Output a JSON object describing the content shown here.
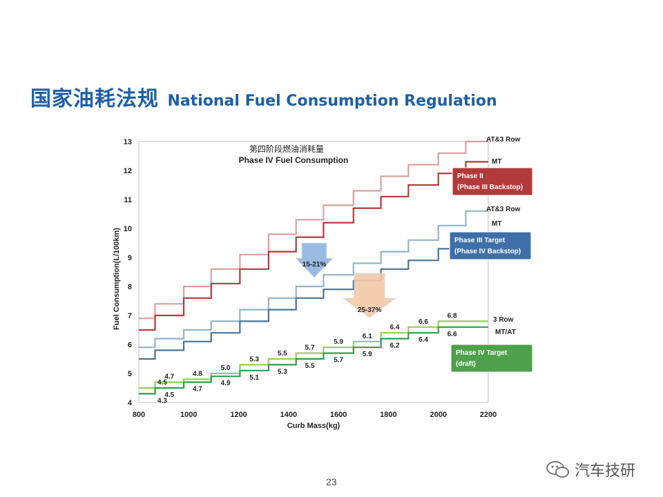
{
  "title": {
    "cn": "国家油耗法规",
    "en": "National Fuel Consumption Regulation"
  },
  "page_number": "23",
  "watermark": "汽车技研",
  "chart_data": {
    "type": "line",
    "title_cn": "第四阶段燃油消耗量",
    "title": "Phase IV Fuel Consumption",
    "xlabel": "Curb Mass(kg)",
    "ylabel": "Fuel Consumption(L/100km)",
    "xlim": [
      800,
      2200
    ],
    "ylim": [
      4,
      13
    ],
    "x_ticks": [
      "800",
      "1000",
      "1200",
      "1400",
      "1600",
      "1800",
      "2000",
      "2200"
    ],
    "y_ticks": [
      "4",
      "5",
      "6",
      "7",
      "8",
      "9",
      "10",
      "11",
      "12",
      "13"
    ],
    "step_boundaries": [
      865,
      980,
      1090,
      1205,
      1320,
      1430,
      1540,
      1660,
      1770,
      1880,
      2000,
      2110
    ],
    "series": [
      {
        "name": "AT&3 Row",
        "group": "Phase II",
        "color": "#d9a0a0",
        "values": [
          6.9,
          7.4,
          8.0,
          8.6,
          9.1,
          9.8,
          10.3,
          10.8,
          11.3,
          11.8,
          12.2,
          12.6,
          13.0
        ]
      },
      {
        "name": "MT",
        "group": "Phase II",
        "color": "#b23a3a",
        "values": [
          6.5,
          7.0,
          7.6,
          8.1,
          8.6,
          9.2,
          9.7,
          10.2,
          10.7,
          11.1,
          11.5,
          11.9,
          12.3
        ]
      },
      {
        "name": "AT&3 Row",
        "group": "Phase III",
        "color": "#8fb4cc",
        "values": [
          5.9,
          6.2,
          6.5,
          6.8,
          7.2,
          7.6,
          8.0,
          8.4,
          8.8,
          9.2,
          9.6,
          10.1,
          10.6
        ]
      },
      {
        "name": "MT",
        "group": "Phase III",
        "color": "#4a7396",
        "values": [
          5.5,
          5.8,
          6.1,
          6.4,
          6.8,
          7.2,
          7.6,
          7.9,
          8.2,
          8.6,
          8.9,
          9.3,
          9.7
        ]
      },
      {
        "name": "3 Row",
        "group": "Phase IV",
        "color": "#92d050",
        "values": [
          4.5,
          4.7,
          4.8,
          5.0,
          5.3,
          5.5,
          5.7,
          5.9,
          6.1,
          6.4,
          6.6,
          6.8,
          6.8
        ]
      },
      {
        "name": "MT/AT",
        "group": "Phase IV",
        "color": "#2e9e4a",
        "values": [
          4.3,
          4.5,
          4.7,
          4.9,
          5.1,
          5.3,
          5.5,
          5.7,
          5.9,
          6.2,
          6.4,
          6.6,
          6.6
        ]
      }
    ],
    "data_labels": {
      "upper": [
        "4.5",
        "4.7",
        "4.8",
        "5.0",
        "5.3",
        "5.5",
        "5.7",
        "5.9",
        "6.1",
        "6.4",
        "6.6",
        "6.8"
      ],
      "lower": [
        "4.3",
        "4.5",
        "4.7",
        "4.9",
        "5.1",
        "5.3",
        "5.5",
        "5.7",
        "5.9",
        "6.2",
        "6.4",
        "6.6"
      ]
    },
    "legend_boxes": [
      {
        "line1": "Phase II",
        "line2": "(Phase III Backstop)",
        "color": "#b23a3a"
      },
      {
        "line1": "Phase III Target",
        "line2": "(Phase IV Backstop)",
        "color": "#3f6fa8"
      },
      {
        "line1": "Phase IV Target",
        "line2": "(draft)",
        "color": "#4ea04a"
      }
    ],
    "arrows": [
      {
        "label": "15-21%",
        "color": "#8fb4e0"
      },
      {
        "label": "25-37%",
        "color": "#f5c9a8"
      }
    ]
  }
}
